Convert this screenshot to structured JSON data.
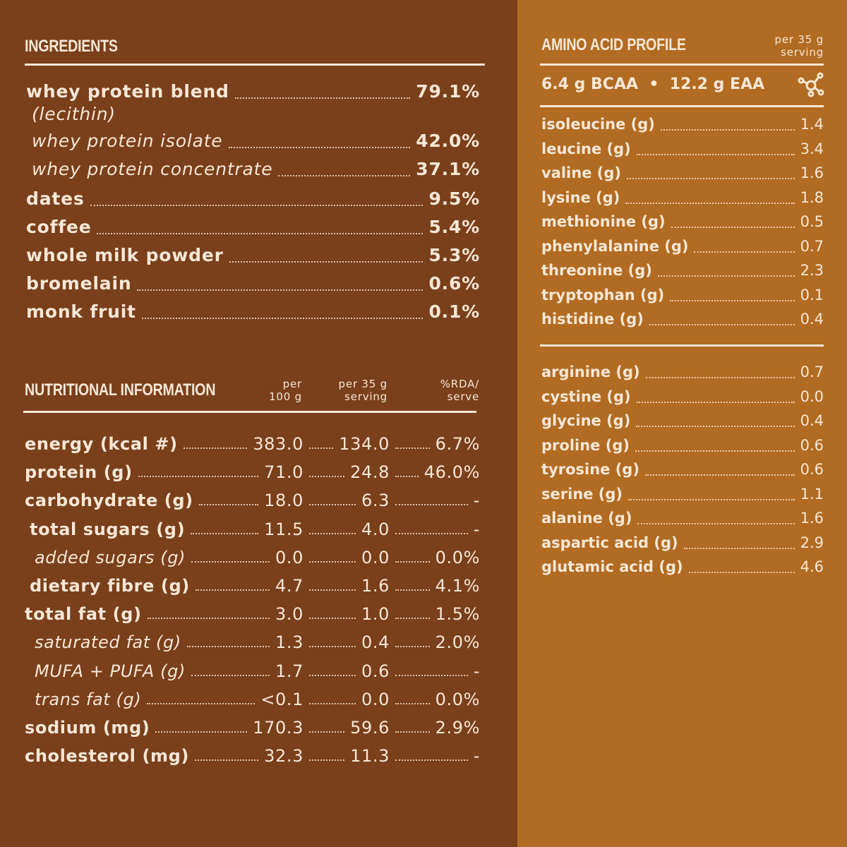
{
  "ingredients": {
    "title": "INGREDIENTS",
    "items": [
      {
        "label": "whey protein blend",
        "value": "79.1%",
        "style": "bold"
      },
      {
        "label": "(lecithin)",
        "value": "",
        "style": "note"
      },
      {
        "label": "whey protein isolate",
        "value": "42.0%",
        "style": "italic"
      },
      {
        "label": "whey protein concentrate",
        "value": "37.1%",
        "style": "italic"
      },
      {
        "label": "dates",
        "value": "9.5%",
        "style": "bold"
      },
      {
        "label": "coffee",
        "value": "5.4%",
        "style": "bold"
      },
      {
        "label": "whole milk powder",
        "value": "5.3%",
        "style": "bold"
      },
      {
        "label": "bromelain",
        "value": "0.6%",
        "style": "bold"
      },
      {
        "label": "monk fruit",
        "value": "0.1%",
        "style": "bold"
      }
    ]
  },
  "nutrition": {
    "title": "NUTRITIONAL INFORMATION",
    "col1": [
      "per",
      "100 g"
    ],
    "col2": [
      "per 35 g",
      "serving"
    ],
    "col3": [
      "%RDA/",
      "serve"
    ],
    "rows": [
      {
        "label": "energy (kcal #)",
        "per100": "383.0",
        "serving": "134.0",
        "rda": "6.7%",
        "indent": 0,
        "italic": false
      },
      {
        "label": "protein (g)",
        "per100": "71.0",
        "serving": "24.8",
        "rda": "46.0%",
        "indent": 0,
        "italic": false
      },
      {
        "label": "carbohydrate (g)",
        "per100": "18.0",
        "serving": "6.3",
        "rda": "-",
        "indent": 0,
        "italic": false
      },
      {
        "label": "total sugars (g)",
        "per100": "11.5",
        "serving": "4.0",
        "rda": "-",
        "indent": 1,
        "italic": false
      },
      {
        "label": "added sugars (g)",
        "per100": "0.0",
        "serving": "0.0",
        "rda": "0.0%",
        "indent": 2,
        "italic": true
      },
      {
        "label": "dietary fibre (g)",
        "per100": "4.7",
        "serving": "1.6",
        "rda": "4.1%",
        "indent": 1,
        "italic": false
      },
      {
        "label": "total fat (g)",
        "per100": "3.0",
        "serving": "1.0",
        "rda": "1.5%",
        "indent": 0,
        "italic": false
      },
      {
        "label": "saturated fat (g)",
        "per100": "1.3",
        "serving": "0.4",
        "rda": "2.0%",
        "indent": 2,
        "italic": true
      },
      {
        "label": "MUFA + PUFA (g)",
        "per100": "1.7",
        "serving": "0.6",
        "rda": "-",
        "indent": 2,
        "italic": true
      },
      {
        "label": "trans fat (g)",
        "per100": "<0.1",
        "serving": "0.0",
        "rda": "0.0%",
        "indent": 2,
        "italic": true
      },
      {
        "label": "sodium (mg)",
        "per100": "170.3",
        "serving": "59.6",
        "rda": "2.9%",
        "indent": 0,
        "italic": false
      },
      {
        "label": "cholesterol (mg)",
        "per100": "32.3",
        "serving": "11.3",
        "rda": "-",
        "indent": 0,
        "italic": false
      }
    ]
  },
  "amino": {
    "title": "AMINO ACID PROFILE",
    "serving": [
      "per 35 g",
      "serving"
    ],
    "summary": "6.4 g BCAA  •  12.2 g EAA",
    "icon": "molecule-icon",
    "group1": [
      {
        "label": "isoleucine (g)",
        "value": "1.4"
      },
      {
        "label": "leucine (g)",
        "value": "3.4"
      },
      {
        "label": "valine (g)",
        "value": "1.6"
      },
      {
        "label": "lysine (g)",
        "value": "1.8"
      },
      {
        "label": "methionine (g)",
        "value": "0.5"
      },
      {
        "label": "phenylalanine (g)",
        "value": "0.7"
      },
      {
        "label": "threonine (g)",
        "value": "2.3"
      },
      {
        "label": "tryptophan (g)",
        "value": "0.1"
      },
      {
        "label": "histidine (g)",
        "value": "0.4"
      }
    ],
    "group2": [
      {
        "label": "arginine (g)",
        "value": "0.7"
      },
      {
        "label": "cystine (g)",
        "value": "0.0"
      },
      {
        "label": "glycine (g)",
        "value": "0.4"
      },
      {
        "label": "proline (g)",
        "value": "0.6"
      },
      {
        "label": "tyrosine (g)",
        "value": "0.6"
      },
      {
        "label": "serine (g)",
        "value": "1.1"
      },
      {
        "label": "alanine (g)",
        "value": "1.6"
      },
      {
        "label": "aspartic acid (g)",
        "value": "2.9"
      },
      {
        "label": "glutamic acid (g)",
        "value": "4.6"
      }
    ]
  },
  "colors": {
    "left_bg": "#7a3f1b",
    "right_bg": "#b26b22",
    "text": "#f6e7d6"
  }
}
